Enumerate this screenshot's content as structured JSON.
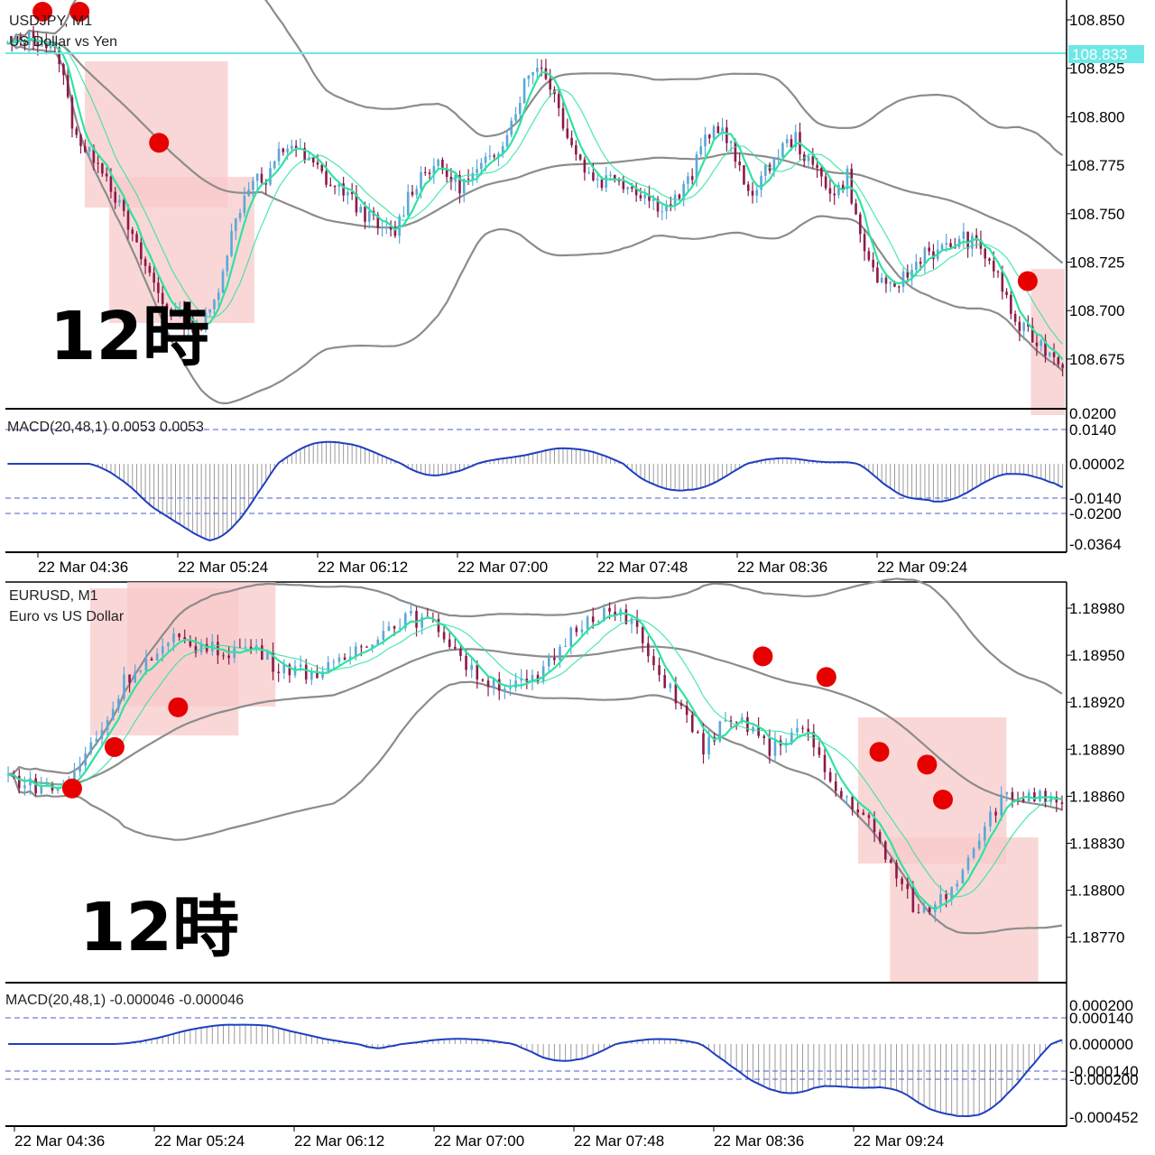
{
  "charts": [
    {
      "symbol": "USDJPY, M1",
      "description": "US Dollar vs Yen",
      "overlay_text": "12時",
      "price_ticks": [
        "108.850",
        "108.825",
        "108.800",
        "108.775",
        "108.750",
        "108.725",
        "108.700",
        "108.675"
      ],
      "current_price": "108.833",
      "macd_label": "MACD(20,48,1) 0.0053 0.0053",
      "macd_ticks": [
        "0.0200",
        "0.0140",
        "0.00002",
        "-0.0140",
        "-0.0200",
        "-0.0364"
      ],
      "time_labels": [
        "22 Mar 04:36",
        "22 Mar 05:24",
        "22 Mar 06:12",
        "22 Mar 07:00",
        "22 Mar 07:48",
        "22 Mar 08:36",
        "22 Mar 09:24"
      ]
    },
    {
      "symbol": "EURUSD, M1",
      "description": "Euro vs US Dollar",
      "overlay_text": "12時",
      "price_ticks": [
        "1.18980",
        "1.18950",
        "1.18920",
        "1.18890",
        "1.18860",
        "1.18830",
        "1.18800",
        "1.18770"
      ],
      "macd_label": "MACD(20,48,1) -0.000046 -0.000046",
      "macd_ticks": [
        "0.000200",
        "0.000140",
        "0.000000",
        "-0.000140",
        "-0.000200",
        "-0.000452"
      ],
      "time_labels": [
        "22 Mar 04:36",
        "22 Mar 05:24",
        "22 Mar 06:12",
        "22 Mar 07:00",
        "22 Mar 07:48",
        "22 Mar 08:36",
        "22 Mar 09:24"
      ]
    }
  ],
  "colors": {
    "bull": "#5aa8d8",
    "bear": "#8b1a4a",
    "ma": "#2ee3a0",
    "band": "#8c8c8c",
    "macd": "#1f3fbf",
    "hline": "#6ee8e6",
    "box": "#f8c9c9",
    "dot": "#e60000"
  },
  "chart_data": [
    {
      "type": "candlestick",
      "title": "USDJPY, M1",
      "ylim": [
        108.665,
        108.855
      ],
      "current_price": 108.833,
      "close_path": [
        108.835,
        108.838,
        108.84,
        108.836,
        108.83,
        108.8,
        108.785,
        108.783,
        108.77,
        108.755,
        108.74,
        108.728,
        108.715,
        108.71,
        108.705,
        108.703,
        108.715,
        108.74,
        108.76,
        108.775,
        108.77,
        108.785,
        108.79,
        108.782,
        108.778,
        108.77,
        108.768,
        108.76,
        108.755,
        108.748,
        108.748,
        108.765,
        108.775,
        108.78,
        108.775,
        108.77,
        108.774,
        108.78,
        108.788,
        108.8,
        108.818,
        108.828,
        108.818,
        108.8,
        108.785,
        108.775,
        108.772,
        108.775,
        108.77,
        108.767,
        108.762,
        108.76,
        108.765,
        108.775,
        108.793,
        108.798,
        108.788,
        108.77,
        108.768,
        108.78,
        108.788,
        108.792,
        108.78,
        108.775,
        108.765,
        108.775,
        108.745,
        108.73,
        108.72,
        108.725,
        108.73,
        108.74,
        108.738,
        108.742,
        108.745,
        108.742,
        108.735,
        108.722,
        108.705,
        108.7,
        108.695,
        108.69,
        108.685
      ],
      "red_boxes_time": [
        [
          0.075,
          0.21
        ],
        [
          0.098,
          0.235
        ],
        [
          0.968,
          1.0
        ]
      ],
      "red_dots": [
        [
          0.035,
          108.855
        ],
        [
          0.07,
          108.855
        ],
        [
          0.145,
          108.79
        ],
        [
          0.965,
          108.725
        ]
      ]
    },
    {
      "type": "candlestick",
      "title": "EURUSD, M1",
      "ylim": [
        1.18745,
        1.18995
      ],
      "close_path": [
        1.18875,
        1.1887,
        1.18868,
        1.18867,
        1.18875,
        1.18895,
        1.1891,
        1.18935,
        1.18945,
        1.1895,
        1.1896,
        1.18958,
        1.18955,
        1.18953,
        1.18955,
        1.18955,
        1.18945,
        1.18943,
        1.1894,
        1.1894,
        1.18945,
        1.18955,
        1.18962,
        1.18968,
        1.18975,
        1.18972,
        1.18968,
        1.18955,
        1.1894,
        1.18935,
        1.18932,
        1.18932,
        1.18935,
        1.1895,
        1.18965,
        1.18975,
        1.18978,
        1.18975,
        1.18968,
        1.1894,
        1.18932,
        1.1891,
        1.18892,
        1.18905,
        1.18908,
        1.18905,
        1.1889,
        1.189,
        1.18905,
        1.18885,
        1.18865,
        1.18858,
        1.18845,
        1.18825,
        1.18805,
        1.18788,
        1.18795,
        1.18805,
        1.18825,
        1.18845,
        1.1886,
        1.18862,
        1.18862,
        1.18858,
        1.18852
      ],
      "red_boxes_time": [
        [
          0.08,
          0.22
        ],
        [
          0.115,
          0.255
        ],
        [
          0.805,
          0.945
        ],
        [
          0.835,
          0.975
        ]
      ],
      "red_dots": [
        [
          0.063,
          1.18867
        ],
        [
          0.103,
          1.18893
        ],
        [
          0.163,
          1.18918
        ],
        [
          0.715,
          1.1895
        ],
        [
          0.775,
          1.18937
        ],
        [
          0.825,
          1.1889
        ],
        [
          0.87,
          1.18882
        ],
        [
          0.885,
          1.1886
        ]
      ]
    }
  ]
}
